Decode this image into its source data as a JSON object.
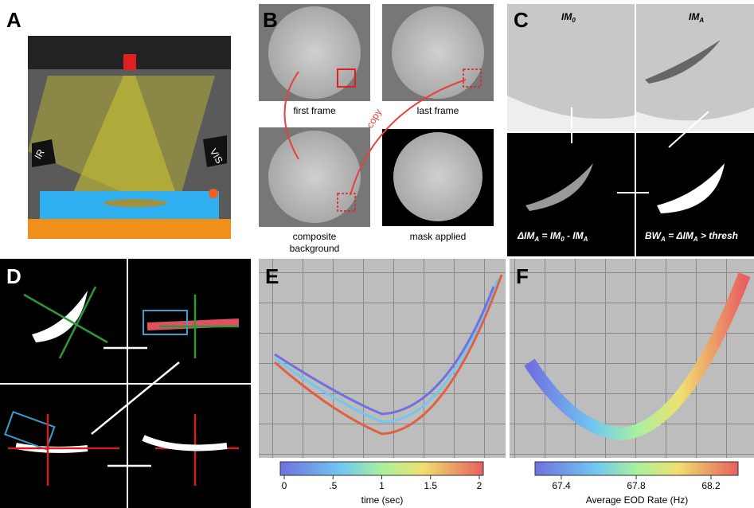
{
  "panels": {
    "a": {
      "letter": "A",
      "ir": "IR",
      "vis": "VIS"
    },
    "b": {
      "letter": "B",
      "first": "first frame",
      "last": "last frame",
      "copy": "copy",
      "composite": [
        "composite",
        "background"
      ],
      "mask": "mask applied"
    },
    "c": {
      "letter": "C",
      "im0": [
        "IM",
        "0"
      ],
      "ima": [
        "IM",
        "A"
      ],
      "eq1": [
        "ΔIM",
        "A",
        " = IM",
        "0",
        " - IM",
        "A"
      ],
      "eq2": [
        "BW",
        "A",
        " = ΔIM",
        "A",
        " > thresh"
      ]
    },
    "d": {
      "letter": "D"
    },
    "e": {
      "letter": "E",
      "ticks": [
        "0",
        ".5",
        "1",
        "1.5",
        "2"
      ],
      "label": "time (sec)"
    },
    "f": {
      "letter": "F",
      "ticks": [
        "67.4",
        "67.8",
        "68.2"
      ],
      "label": "Average EOD Rate (Hz)"
    }
  }
}
